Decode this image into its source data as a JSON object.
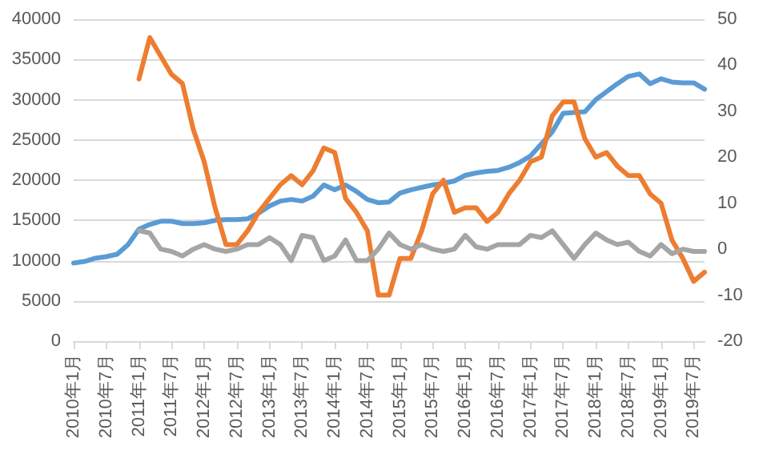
{
  "chart_data": {
    "type": "line",
    "categories": [
      "2010年1月",
      null,
      null,
      "2010年7月",
      null,
      null,
      "2011年1月",
      null,
      null,
      "2011年7月",
      null,
      null,
      "2012年1月",
      null,
      null,
      "2012年7月",
      null,
      null,
      "2013年1月",
      null,
      null,
      "2013年7月",
      null,
      null,
      "2014年1月",
      null,
      null,
      "2014年7月",
      null,
      null,
      "2015年1月",
      null,
      null,
      "2015年7月",
      null,
      null,
      "2016年1月",
      null,
      null,
      "2016年7月",
      null,
      null,
      "2017年1月",
      null,
      null,
      "2017年7月",
      null,
      null,
      "2018年1月",
      null,
      null,
      "2018年7月",
      null,
      null,
      "2019年1月",
      null,
      null,
      "2019年7月",
      null
    ],
    "series": [
      {
        "color": "#5b9bd5",
        "values": [
          9700,
          9900,
          10300,
          10500,
          10800,
          12000,
          13900,
          14500,
          14900,
          14900,
          14600,
          14600,
          14700,
          15000,
          15100,
          15100,
          15200,
          15900,
          16800,
          17400,
          17600,
          17400,
          18000,
          19400,
          18800,
          19400,
          18600,
          17600,
          17200,
          17300,
          18400,
          18800,
          19100,
          19400,
          19600,
          19900,
          20600,
          20900,
          21100,
          21200,
          21600,
          22200,
          23000,
          24500,
          26000,
          28300,
          28400,
          28500,
          30000,
          31000,
          32000,
          32900,
          33200,
          32000,
          32600,
          32200,
          32100,
          32100,
          31300
        ]
      },
      {
        "color": "#ed7d31",
        "axis": "y2",
        "values": [
          null,
          null,
          null,
          null,
          null,
          null,
          37,
          46,
          42,
          38,
          36,
          26,
          19,
          9,
          1,
          1,
          4,
          8,
          11,
          14,
          16,
          14,
          17,
          22,
          21,
          11,
          8,
          4,
          -10,
          -10,
          -2,
          -2,
          4,
          12,
          15,
          8,
          9,
          9,
          6,
          8,
          12,
          15,
          19,
          20,
          29,
          32,
          32,
          24,
          20,
          21,
          18,
          16,
          16,
          12,
          10,
          2,
          -2,
          -7,
          -5
        ]
      },
      {
        "color": "#a5a5a5",
        "axis": "y2",
        "values": [
          null,
          null,
          null,
          null,
          null,
          null,
          4,
          3.5,
          0,
          -0.5,
          -1.5,
          0,
          1,
          0,
          -0.5,
          0,
          1,
          1,
          2.5,
          1,
          -2.5,
          3,
          2.5,
          -2.5,
          -1.5,
          2,
          -2.5,
          -2.5,
          0,
          3.5,
          1,
          0,
          1,
          0,
          -0.5,
          0,
          3,
          0.5,
          0,
          1,
          1,
          1,
          3,
          2.5,
          4,
          1,
          -2,
          1,
          3.5,
          2,
          1,
          1.5,
          -0.5,
          -1.5,
          1,
          -1,
          0,
          -0.5,
          -0.5
        ]
      }
    ],
    "ylim": [
      0,
      40000
    ],
    "yticks": [
      0,
      5000,
      10000,
      15000,
      20000,
      25000,
      30000,
      35000,
      40000
    ],
    "y2lim": [
      -20,
      50
    ],
    "y2ticks": [
      -20,
      -10,
      0,
      10,
      20,
      30,
      40,
      50
    ],
    "grid": "y",
    "marker": "none",
    "line_style": "solid"
  }
}
